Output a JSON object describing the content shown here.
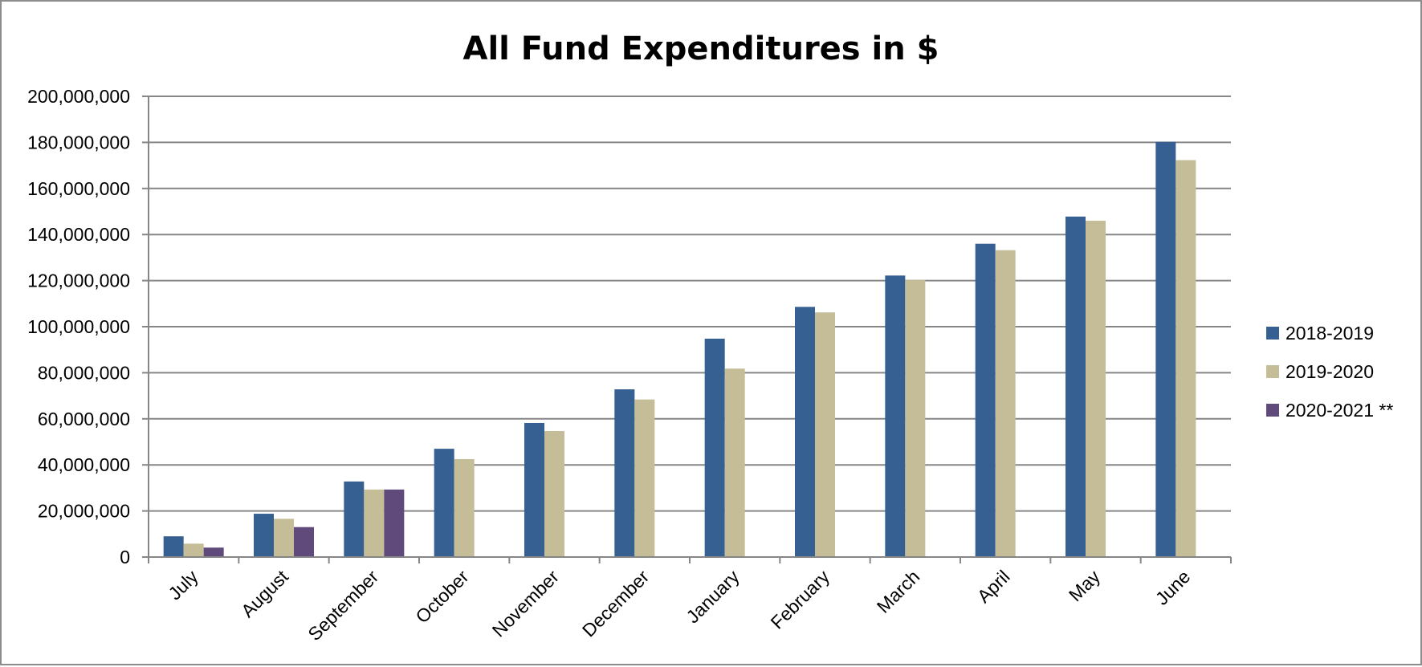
{
  "chart_data": {
    "type": "bar",
    "title": "All Fund Expenditures in $",
    "xlabel": "",
    "ylabel": "",
    "ylim": [
      0,
      200000000
    ],
    "yticks": [
      0,
      20000000,
      40000000,
      60000000,
      80000000,
      100000000,
      120000000,
      140000000,
      160000000,
      180000000,
      200000000
    ],
    "ytick_labels": [
      "0",
      "20,000,000",
      "40,000,000",
      "60,000,000",
      "80,000,000",
      "100,000,000",
      "120,000,000",
      "140,000,000",
      "160,000,000",
      "180,000,000",
      "200,000,000"
    ],
    "categories": [
      "July",
      "August",
      "September",
      "October",
      "November",
      "December",
      "January",
      "February",
      "March",
      "April",
      "May",
      "June"
    ],
    "series": [
      {
        "name": "2018-2019",
        "color": "#366092",
        "values": [
          9000000,
          18800000,
          32800000,
          47000000,
          58200000,
          72800000,
          94800000,
          108600000,
          122200000,
          136000000,
          147800000,
          180200000
        ]
      },
      {
        "name": "2019-2020",
        "color": "#C4BD97",
        "values": [
          5800000,
          16600000,
          29300000,
          42500000,
          54700000,
          68400000,
          81800000,
          106200000,
          120300000,
          133200000,
          146000000,
          172300000
        ]
      },
      {
        "name": "2020-2021 **",
        "color": "#604A7B",
        "values": [
          4100000,
          13000000,
          29300000,
          null,
          null,
          null,
          null,
          null,
          null,
          null,
          null,
          null
        ]
      }
    ],
    "grid": true,
    "legend_position": "right",
    "gridline_color": "#868686",
    "axis_color": "#868686"
  }
}
